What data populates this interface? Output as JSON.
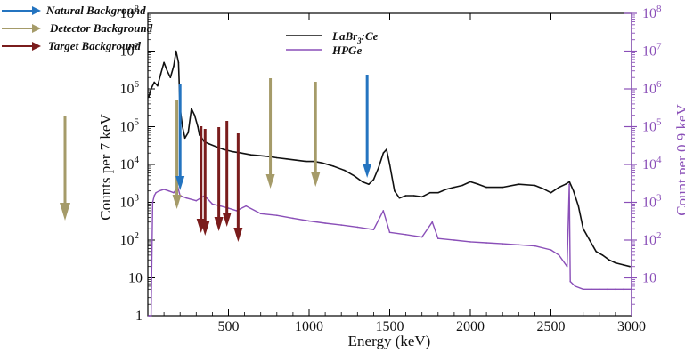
{
  "chart_data": {
    "type": "line",
    "xlabel": "Energy (keV)",
    "ylabel_left": "Counts per 7 keV",
    "ylabel_right": "Count per 0.9 keV",
    "xlim": [
      0,
      3000
    ],
    "ylim": [
      1,
      100000000
    ],
    "yscale": "log",
    "x_ticks": [
      500,
      1000,
      1500,
      2000,
      2500,
      3000
    ],
    "x_tick_labels": [
      "500",
      "1000",
      "1500",
      "2000",
      "2500",
      "3000"
    ],
    "y_tick_labels_left": [
      {
        "value": 1,
        "base": "1",
        "exp": ""
      },
      {
        "value": 10,
        "base": "10",
        "exp": ""
      },
      {
        "value": 100,
        "base": "10",
        "exp": "2"
      },
      {
        "value": 1000,
        "base": "10",
        "exp": "3"
      },
      {
        "value": 10000,
        "base": "10",
        "exp": "4"
      },
      {
        "value": 100000,
        "base": "10",
        "exp": "5"
      },
      {
        "value": 1000000,
        "base": "10",
        "exp": "6"
      },
      {
        "value": 10000000,
        "base": "10",
        "exp": "7"
      },
      {
        "value": 100000000,
        "base": "10",
        "exp": "8"
      }
    ],
    "y_tick_labels_right": [
      {
        "value": 10,
        "base": "10",
        "exp": ""
      },
      {
        "value": 100,
        "base": "10",
        "exp": "2"
      },
      {
        "value": 1000,
        "base": "10",
        "exp": "3"
      },
      {
        "value": 10000,
        "base": "10",
        "exp": "4"
      },
      {
        "value": 100000,
        "base": "10",
        "exp": "5"
      },
      {
        "value": 1000000,
        "base": "10",
        "exp": "6"
      },
      {
        "value": 10000000,
        "base": "10",
        "exp": "7"
      },
      {
        "value": 100000000,
        "base": "10",
        "exp": "8"
      }
    ],
    "series": [
      {
        "name": "LaBr3:Ce",
        "name_main": "LaBr",
        "name_sub": "3",
        "name_tail": ":Ce",
        "color": "#111111",
        "x": [
          5,
          20,
          40,
          60,
          80,
          100,
          120,
          140,
          160,
          175,
          190,
          200,
          215,
          230,
          250,
          270,
          290,
          310,
          320,
          335,
          350,
          380,
          420,
          470,
          520,
          580,
          640,
          700,
          760,
          800,
          860,
          920,
          980,
          1030,
          1080,
          1150,
          1220,
          1280,
          1330,
          1370,
          1400,
          1430,
          1460,
          1480,
          1500,
          1530,
          1560,
          1600,
          1650,
          1700,
          1750,
          1800,
          1850,
          1900,
          1950,
          2000,
          2050,
          2100,
          2200,
          2300,
          2400,
          2450,
          2500,
          2550,
          2590,
          2615,
          2640,
          2670,
          2700,
          2740,
          2780,
          2820,
          2860,
          2900,
          2950,
          2990
        ],
        "y": [
          600000,
          1000000,
          1500000,
          1200000,
          2500000,
          5000000,
          3000000,
          2000000,
          4000000,
          10000000,
          5000000,
          300000,
          100000,
          50000,
          70000,
          300000,
          200000,
          100000,
          60000,
          50000,
          40000,
          35000,
          30000,
          25000,
          22000,
          20000,
          18000,
          17000,
          16000,
          15000,
          14000,
          13000,
          12000,
          12000,
          11000,
          9000,
          7000,
          5000,
          3500,
          3000,
          4000,
          8000,
          20000,
          25000,
          10000,
          2000,
          1300,
          1500,
          1500,
          1400,
          1800,
          1800,
          2200,
          2500,
          2800,
          3500,
          3000,
          2500,
          2500,
          3000,
          2800,
          2300,
          1800,
          2500,
          3000,
          3500,
          2000,
          800,
          200,
          100,
          50,
          40,
          30,
          25,
          22,
          20
        ]
      },
      {
        "name": "HPGe",
        "color": "#8a4fb8",
        "x": [
          5,
          10,
          20,
          30,
          40,
          50,
          70,
          100,
          130,
          160,
          186,
          200,
          240,
          300,
          352,
          400,
          450,
          500,
          550,
          609,
          700,
          800,
          900,
          1000,
          1100,
          1200,
          1300,
          1400,
          1460,
          1500,
          1600,
          1700,
          1764,
          1800,
          1900,
          2000,
          2100,
          2200,
          2300,
          2400,
          2500,
          2550,
          2600,
          2614,
          2620,
          2650,
          2700,
          2750,
          2800,
          2850,
          2900,
          2950,
          3000
        ],
        "y": [
          1,
          1,
          1,
          1000,
          1500,
          1800,
          2000,
          2200,
          2000,
          1800,
          2500,
          1500,
          1300,
          1100,
          1500,
          900,
          800,
          700,
          600,
          800,
          500,
          450,
          380,
          320,
          280,
          250,
          220,
          190,
          600,
          160,
          140,
          120,
          300,
          110,
          100,
          90,
          85,
          80,
          75,
          70,
          55,
          40,
          20,
          3000,
          8,
          6,
          5,
          5,
          5,
          5,
          5,
          5,
          5
        ]
      }
    ]
  },
  "legend_arrows": [
    {
      "label": "Natural Background",
      "color": "#2474c0"
    },
    {
      "label": "Detector Background",
      "color": "#a59b69"
    },
    {
      "label": "Target Background",
      "color": "#7a1c1c"
    }
  ],
  "arrows": {
    "natural": {
      "color": "#2474c0",
      "energies": [
        200,
        1360
      ]
    },
    "detector": {
      "color": "#a59b69",
      "energies": [
        180,
        760,
        1040
      ]
    },
    "target": {
      "color": "#7a1c1c",
      "energies": [
        330,
        355,
        440,
        490,
        560
      ]
    }
  }
}
